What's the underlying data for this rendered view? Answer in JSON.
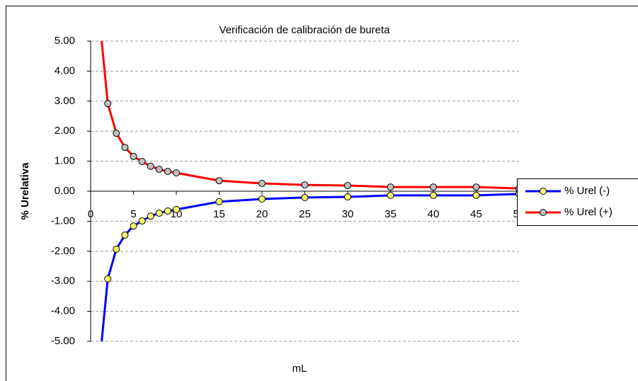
{
  "chart_data": {
    "type": "line",
    "title": "Verificación de calibración de bureta",
    "x_label": "mL",
    "y_label": "% Urelativa",
    "x": [
      1,
      2,
      3,
      4,
      5,
      6,
      7,
      8,
      9,
      10,
      15,
      20,
      25,
      30,
      35,
      40,
      45,
      50
    ],
    "series": [
      {
        "name": "% Urel (-)",
        "color": "#0000ff",
        "marker_color": "#ffff66",
        "values": [
          -5.84,
          -2.92,
          -1.93,
          -1.46,
          -1.16,
          -0.99,
          -0.83,
          -0.73,
          -0.66,
          -0.61,
          -0.35,
          -0.26,
          -0.21,
          -0.19,
          -0.14,
          -0.14,
          -0.14,
          -0.09
        ]
      },
      {
        "name": "% Urel (+)",
        "color": "#ff0000",
        "marker_color": "#c0c0c0",
        "values": [
          5.84,
          2.92,
          1.93,
          1.46,
          1.16,
          0.99,
          0.83,
          0.73,
          0.66,
          0.61,
          0.35,
          0.26,
          0.21,
          0.19,
          0.14,
          0.14,
          0.14,
          0.09
        ]
      }
    ],
    "xlim": [
      0,
      50
    ],
    "xticks": [
      0,
      5,
      10,
      15,
      20,
      25,
      30,
      35,
      40,
      45,
      50
    ],
    "ylim": [
      -5,
      5
    ],
    "yticks": [
      {
        "value": -5,
        "label": "-5.00"
      },
      {
        "value": -4,
        "label": "-4.00"
      },
      {
        "value": -3,
        "label": "-3.00"
      },
      {
        "value": -2,
        "label": "-2.00"
      },
      {
        "value": -1,
        "label": "-1.00"
      },
      {
        "value": 0,
        "label": "0.00"
      },
      {
        "value": 1,
        "label": "1.00"
      },
      {
        "value": 2,
        "label": "2.00"
      },
      {
        "value": 3,
        "label": "3.00"
      },
      {
        "value": 4,
        "label": "4.00"
      },
      {
        "value": 5,
        "label": "5.00"
      }
    ],
    "grid": true,
    "legend": "right"
  }
}
